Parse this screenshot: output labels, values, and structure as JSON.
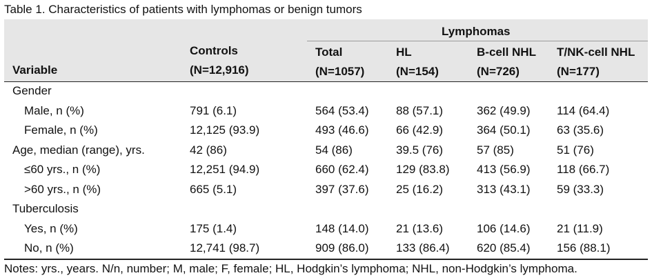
{
  "caption": "Table 1. Characteristics of patients with lymphomas or benign tumors",
  "header": {
    "variable": "Variable",
    "controls": "Controls",
    "controls_n": "(N=12,916)",
    "group": "Lymphomas",
    "columns": [
      {
        "label": "Total",
        "n": "(N=1057)"
      },
      {
        "label": "HL",
        "n": "(N=154)"
      },
      {
        "label": "B-cell NHL",
        "n": "(N=726)"
      },
      {
        "label": "T/NK-cell NHL",
        "n": "(N=177)"
      }
    ]
  },
  "rows": [
    {
      "label": "Gender",
      "indent": false,
      "values": [
        "",
        "",
        "",
        "",
        ""
      ]
    },
    {
      "label": "Male, n (%)",
      "indent": true,
      "values": [
        "791 (6.1)",
        "564 (53.4)",
        "88 (57.1)",
        "362 (49.9)",
        "114 (64.4)"
      ]
    },
    {
      "label": "Female, n (%)",
      "indent": true,
      "values": [
        "12,125 (93.9)",
        "493 (46.6)",
        "66 (42.9)",
        "364 (50.1)",
        "63 (35.6)"
      ]
    },
    {
      "label": "Age, median (range), yrs.",
      "indent": false,
      "values": [
        "42 (86)",
        "54 (86)",
        "39.5 (76)",
        "57 (85)",
        "51 (76)"
      ]
    },
    {
      "label": "≤60 yrs., n (%)",
      "indent": true,
      "values": [
        "12,251 (94.9)",
        "660 (62.4)",
        "129 (83.8)",
        "413 (56.9)",
        "118 (66.7)"
      ]
    },
    {
      "label": ">60 yrs., n (%)",
      "indent": true,
      "values": [
        "665 (5.1)",
        "397 (37.6)",
        "25 (16.2)",
        "313 (43.1)",
        "59 (33.3)"
      ]
    },
    {
      "label": "Tuberculosis",
      "indent": false,
      "values": [
        "",
        "",
        "",
        "",
        ""
      ]
    },
    {
      "label": "Yes, n (%)",
      "indent": true,
      "values": [
        "175 (1.4)",
        "148 (14.0)",
        "21 (13.6)",
        "106 (14.6)",
        "21 (11.9)"
      ]
    },
    {
      "label": "No, n (%)",
      "indent": true,
      "values": [
        "12,741 (98.7)",
        "909 (86.0)",
        "133 (86.4)",
        "620 (85.4)",
        "156 (88.1)"
      ]
    }
  ],
  "notes": "Notes: yrs., years. N/n, number; M, male; F, female; HL, Hodgkin’s lymphoma; NHL, non-Hodgkin’s lymphoma."
}
